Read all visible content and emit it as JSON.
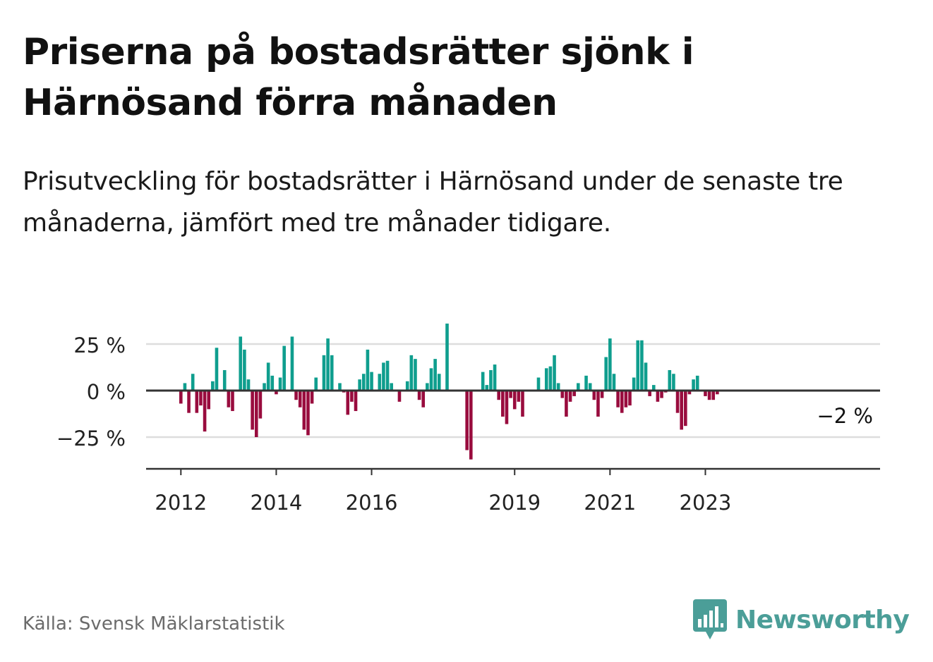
{
  "title": "Priserna på bostadsrätter sjönk i Härnösand förra månaden",
  "subtitle": "Prisutveckling för bostadsrätter i Härnösand under de senaste tre månaderna, jämfört med tre månader tidigare.",
  "source": "Källa: Svensk Mäklarstatistik",
  "brand": {
    "name": "Newsworthy",
    "icon": "newsworthy-bar-chart-icon",
    "color": "#4b9e98"
  },
  "colors": {
    "positive": "#0f9e8e",
    "negative": "#990c3e",
    "grid": "#dddddd",
    "axis": "#333333"
  },
  "chart_data": {
    "type": "bar",
    "title": "",
    "xlabel": "",
    "ylabel": "",
    "ylim": [
      -42,
      38
    ],
    "grid": true,
    "start_year": 2012,
    "start_month": 1,
    "xticks": [
      "2012",
      "2014",
      "2016",
      "2019",
      "2021",
      "2023"
    ],
    "yticks": [
      {
        "value": 25,
        "label": "25 %"
      },
      {
        "value": 0,
        "label": "0 %"
      },
      {
        "value": -25,
        "label": "−25 %"
      }
    ],
    "last_value_label": "−2 %",
    "values": [
      -7,
      4,
      -12,
      9,
      -12,
      -8,
      -22,
      -10,
      5,
      23,
      0,
      11,
      -9,
      -11,
      0,
      29,
      22,
      6,
      -21,
      -25,
      -15,
      4,
      15,
      8,
      -2,
      7,
      24,
      0,
      29,
      -5,
      -9,
      -21,
      -24,
      -7,
      7,
      0,
      19,
      28,
      19,
      0,
      4,
      -1,
      -13,
      -6,
      -11,
      6,
      9,
      22,
      10,
      0,
      9,
      15,
      16,
      4,
      0,
      -6,
      0,
      5,
      19,
      17,
      -5,
      -9,
      4,
      12,
      17,
      9,
      0,
      36,
      0,
      0,
      0,
      0,
      -32,
      -37,
      0,
      0,
      10,
      3,
      11,
      14,
      -5,
      -14,
      -18,
      -4,
      -10,
      -6,
      -14,
      0,
      0,
      0,
      7,
      0,
      12,
      13,
      19,
      4,
      -4,
      -14,
      -6,
      -3,
      4,
      0,
      8,
      4,
      -5,
      -14,
      -4,
      18,
      28,
      9,
      -9,
      -12,
      -9,
      -8,
      7,
      27,
      27,
      15,
      -3,
      3,
      -6,
      -4,
      -1,
      11,
      9,
      -12,
      -21,
      -19,
      -2,
      6,
      8,
      0,
      -3,
      -5,
      -5,
      -2
    ]
  }
}
